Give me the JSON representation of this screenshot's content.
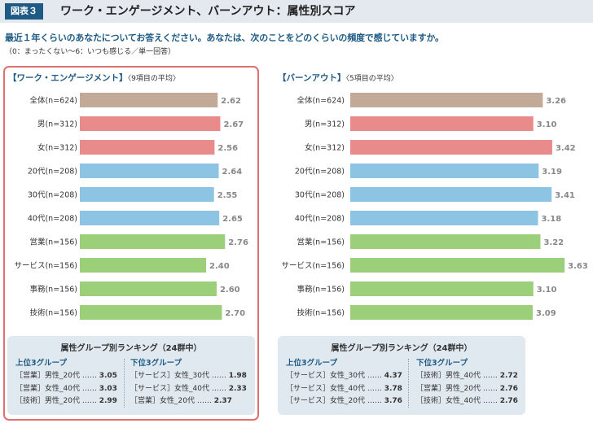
{
  "header": {
    "badge": "図表３",
    "title": "ワーク・エンゲージメント、バーンアウト：属性別スコア"
  },
  "question": "最近１年くらいのあなたについてお答えください。あなたは、次のことをどのくらいの頻度で感じていますか。",
  "scale_note": "（0：まったくない〜6：いつも感じる／単一回答）",
  "chart_data": [
    {
      "type": "bar",
      "orientation": "horizontal",
      "title": "【ワーク・エンゲージメント】",
      "subtitle": "〈9項目の平均〉",
      "categories": [
        "全体(n=624)",
        "男(n=312)",
        "女(n=312)",
        "20代(n=208)",
        "30代(n=208)",
        "40代(n=208)",
        "営業(n=156)",
        "サービス(n=156)",
        "事務(n=156)",
        "技術(n=156)"
      ],
      "values": [
        2.62,
        2.67,
        2.56,
        2.64,
        2.55,
        2.65,
        2.76,
        2.4,
        2.6,
        2.7
      ],
      "labels": [
        "2.62",
        "2.67",
        "2.56",
        "2.64",
        "2.55",
        "2.65",
        "2.76",
        "2.40",
        "2.60",
        "2.70"
      ],
      "groups": [
        "total",
        "gender",
        "gender",
        "age",
        "age",
        "age",
        "job",
        "job",
        "job",
        "job"
      ],
      "xlim": [
        0,
        3.0
      ],
      "ranking": {
        "title": "属性グループ別ランキング（24群中）",
        "top_label": "上位3グループ",
        "bottom_label": "下位3グループ",
        "top": [
          {
            "group": "［営業］",
            "attr": "男性_20代",
            "dots": "……",
            "value": "3.05"
          },
          {
            "group": "［営業］",
            "attr": "女性_40代",
            "dots": "……",
            "value": "3.03"
          },
          {
            "group": "［技術］",
            "attr": "男性_20代",
            "dots": "……",
            "value": "2.99"
          }
        ],
        "bottom": [
          {
            "group": "［サービス］",
            "attr": "女性_30代",
            "dots": "……",
            "value": "1.98"
          },
          {
            "group": "［サービス］",
            "attr": "女性_40代",
            "dots": "……",
            "value": "2.33"
          },
          {
            "group": "［営業］",
            "attr": "女性_20代",
            "dots": "……",
            "value": "2.37"
          }
        ]
      }
    },
    {
      "type": "bar",
      "orientation": "horizontal",
      "title": "【バーンアウト】",
      "subtitle": "〈5項目の平均〉",
      "categories": [
        "全体(n=624)",
        "男(n=312)",
        "女(n=312)",
        "20代(n=208)",
        "30代(n=208)",
        "40代(n=208)",
        "営業(n=156)",
        "サービス(n=156)",
        "事務(n=156)",
        "技術(n=156)"
      ],
      "values": [
        3.26,
        3.1,
        3.42,
        3.19,
        3.41,
        3.18,
        3.22,
        3.63,
        3.1,
        3.09
      ],
      "labels": [
        "3.26",
        "3.10",
        "3.42",
        "3.19",
        "3.41",
        "3.18",
        "3.22",
        "3.63",
        "3.10",
        "3.09"
      ],
      "groups": [
        "total",
        "gender",
        "gender",
        "age",
        "age",
        "age",
        "job",
        "job",
        "job",
        "job"
      ],
      "xlim": [
        0,
        3.8
      ],
      "ranking": {
        "title": "属性グループ別ランキング（24群中）",
        "top_label": "上位3グループ",
        "bottom_label": "下位3グループ",
        "top": [
          {
            "group": "［サービス］",
            "attr": "女性_30代",
            "dots": "……",
            "value": "4.37"
          },
          {
            "group": "［サービス］",
            "attr": "女性_40代",
            "dots": "……",
            "value": "3.78"
          },
          {
            "group": "［サービス］",
            "attr": "女性_20代",
            "dots": "……",
            "value": "3.76"
          }
        ],
        "bottom": [
          {
            "group": "［技術］",
            "attr": "男性_40代",
            "dots": "……",
            "value": "2.72"
          },
          {
            "group": "［営業］",
            "attr": "男性_20代",
            "dots": "……",
            "value": "2.76"
          },
          {
            "group": "［技術］",
            "attr": "女性_40代",
            "dots": "……",
            "value": "2.76"
          }
        ]
      }
    }
  ],
  "colors": {
    "total": "#c2a998",
    "gender": "#e98b8a",
    "age": "#8ec4e3",
    "job": "#9ccf7a",
    "accent": "#1e5a84",
    "highlight_frame": "#e06f6f"
  }
}
